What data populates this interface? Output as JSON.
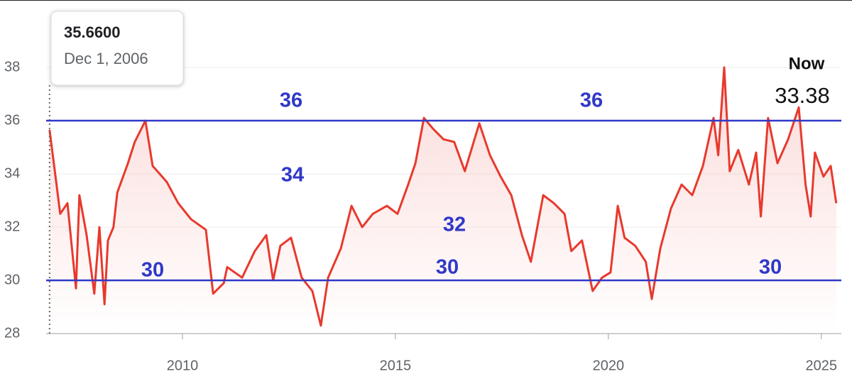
{
  "chart_data": {
    "type": "line",
    "x": [
      2006.88,
      2007.02,
      2007.13,
      2007.3,
      2007.5,
      2007.58,
      2007.75,
      2007.93,
      2008.05,
      2008.17,
      2008.25,
      2008.38,
      2008.47,
      2008.72,
      2008.88,
      2009.13,
      2009.3,
      2009.63,
      2009.9,
      2010.2,
      2010.55,
      2010.72,
      2010.97,
      2011.05,
      2011.4,
      2011.7,
      2011.97,
      2012.13,
      2012.3,
      2012.55,
      2012.8,
      2013.05,
      2013.25,
      2013.42,
      2013.72,
      2013.97,
      2014.22,
      2014.47,
      2014.8,
      2015.05,
      2015.3,
      2015.47,
      2015.67,
      2015.88,
      2016.13,
      2016.38,
      2016.63,
      2016.97,
      2017.22,
      2017.47,
      2017.72,
      2017.97,
      2018.18,
      2018.47,
      2018.72,
      2018.97,
      2019.13,
      2019.38,
      2019.63,
      2019.85,
      2020.05,
      2020.22,
      2020.38,
      2020.63,
      2020.88,
      2021.02,
      2021.22,
      2021.47,
      2021.72,
      2021.97,
      2022.22,
      2022.47,
      2022.58,
      2022.72,
      2022.85,
      2023.05,
      2023.3,
      2023.47,
      2023.58,
      2023.75,
      2023.97,
      2024.22,
      2024.47,
      2024.63,
      2024.75,
      2024.85,
      2025.05,
      2025.22,
      2025.35
    ],
    "series": [
      {
        "color": "#e8392d",
        "values": [
          35.66,
          33.9,
          32.5,
          32.9,
          29.7,
          33.2,
          31.7,
          29.5,
          32.0,
          29.1,
          31.5,
          32.0,
          33.3,
          34.4,
          35.2,
          36.0,
          34.3,
          33.7,
          32.9,
          32.3,
          31.9,
          29.5,
          29.9,
          30.5,
          30.1,
          31.1,
          31.7,
          30.0,
          31.3,
          31.6,
          30.1,
          29.6,
          28.3,
          30.1,
          31.2,
          32.8,
          32.0,
          32.5,
          32.8,
          32.5,
          33.6,
          34.4,
          36.1,
          35.7,
          35.3,
          35.2,
          34.1,
          35.9,
          34.7,
          33.9,
          33.2,
          31.7,
          30.7,
          33.2,
          32.9,
          32.5,
          31.1,
          31.5,
          29.6,
          30.1,
          30.3,
          32.8,
          31.6,
          31.3,
          30.7,
          29.3,
          31.2,
          32.7,
          33.6,
          33.2,
          34.3,
          36.1,
          34.7,
          38.0,
          34.1,
          34.9,
          33.6,
          34.8,
          32.4,
          36.1,
          34.4,
          35.3,
          36.5,
          33.6,
          32.4,
          34.8,
          33.9,
          34.3,
          32.9
        ]
      }
    ],
    "xlim": [
      2006.8,
      2025.47
    ],
    "xticks": [
      2010,
      2015,
      2020,
      2025
    ],
    "ylim": [
      28,
      40
    ],
    "yticks": [
      28,
      30,
      32,
      34,
      36,
      38
    ],
    "grid": true,
    "reference_lines": [
      36,
      30
    ],
    "reference_color": "#3038c8",
    "annotations": [
      "36",
      "36",
      "34",
      "32",
      "30",
      "30",
      "30"
    ],
    "tooltip": {
      "value": "35.6600",
      "date": "Dec 1, 2006"
    },
    "now_label": "Now",
    "now_value": "33.38"
  }
}
